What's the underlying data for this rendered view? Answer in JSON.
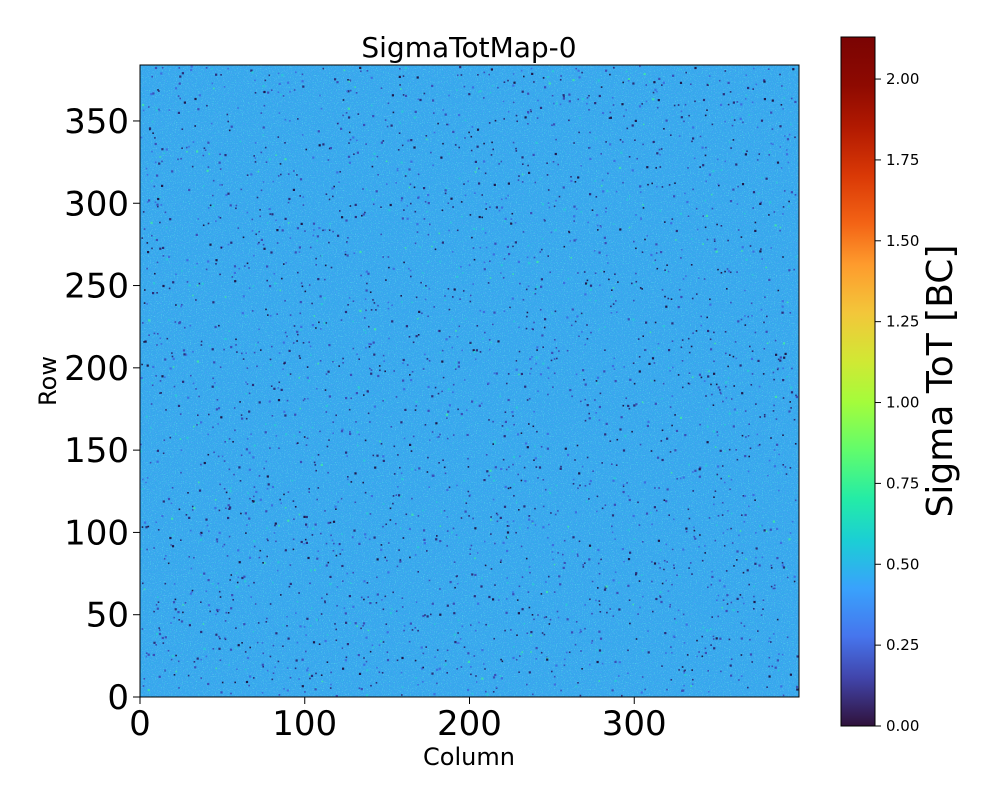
{
  "chart_data": {
    "type": "heatmap",
    "title": "SigmaTotMap-0",
    "xlabel": "Column",
    "ylabel": "Row",
    "xlim": [
      0,
      400
    ],
    "ylim": [
      0,
      384
    ],
    "x_ticks": [
      0,
      100,
      200,
      300
    ],
    "y_ticks": [
      0,
      50,
      100,
      150,
      200,
      250,
      300,
      350
    ],
    "x_tick_labels": [
      "0",
      "100",
      "200",
      "300"
    ],
    "y_tick_labels": [
      "0",
      "50",
      "100",
      "150",
      "200",
      "250",
      "300",
      "350"
    ],
    "grid": false,
    "colormap": "turbo",
    "colorbar": {
      "label": "Sigma ToT [BC]",
      "range": [
        0.0,
        2.13
      ],
      "ticks": [
        0.0,
        0.25,
        0.5,
        0.75,
        1.0,
        1.25,
        1.5,
        1.75,
        2.0
      ],
      "tick_labels": [
        "0.00",
        "0.25",
        "0.50",
        "0.75",
        "1.00",
        "1.25",
        "1.50",
        "1.75",
        "2.00"
      ]
    },
    "values_summary": {
      "typical_range": [
        0.3,
        0.6
      ],
      "dominant_value": 0.45,
      "description": "noisy map of per-pixel values, mostly 0.35-0.55 with scattered dark low-value pixels and a few higher green pixels"
    }
  }
}
